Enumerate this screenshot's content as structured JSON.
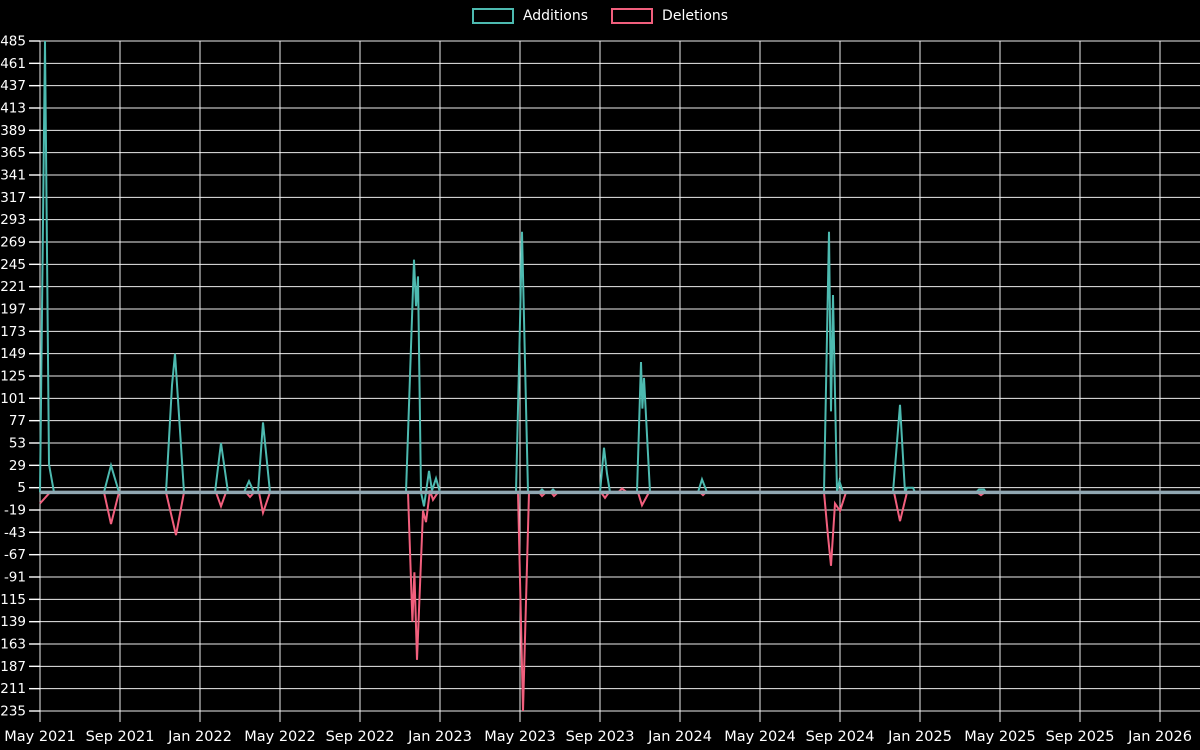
{
  "chart_data": {
    "type": "line",
    "title": "",
    "background_color": "#000000",
    "grid": true,
    "grid_color": "#ffffff",
    "text_color": "#ffffff",
    "zero_line_color": "#90a7b2",
    "legend": {
      "position": "top-center",
      "entries": [
        {
          "label": "Additions",
          "color": "#4dbab0"
        },
        {
          "label": "Deletions",
          "color": "#f15f7d"
        }
      ]
    },
    "y_axis": {
      "min": -235,
      "max": 485,
      "tick_step": 24,
      "ticks": [
        485,
        461,
        437,
        413,
        389,
        365,
        341,
        317,
        293,
        269,
        245,
        221,
        197,
        173,
        149,
        125,
        101,
        77,
        53,
        29,
        5,
        -19,
        -43,
        -67,
        -91,
        -115,
        -139,
        -163,
        -187,
        -211,
        -235
      ]
    },
    "x_axis": {
      "unit": "months since May 2021",
      "range_months": [
        0,
        58
      ],
      "tick_labels": [
        "May 2021",
        "Sep 2021",
        "Jan 2022",
        "May 2022",
        "Sep 2022",
        "Jan 2023",
        "May 2023",
        "Sep 2023",
        "Jan 2024",
        "May 2024",
        "Sep 2024",
        "Jan 2025",
        "May 2025",
        "Sep 2025",
        "Jan 2026"
      ],
      "tick_month_offsets": [
        0,
        4,
        8,
        12,
        16,
        20,
        24,
        28,
        32,
        36,
        40,
        44,
        48,
        52,
        56
      ]
    },
    "series": [
      {
        "name": "Additions",
        "color": "#4dbab0",
        "points": [
          [
            0,
            0
          ],
          [
            0.25,
            485
          ],
          [
            0.45,
            30
          ],
          [
            0.7,
            0
          ],
          [
            3.2,
            0
          ],
          [
            3.55,
            29
          ],
          [
            3.95,
            0
          ],
          [
            6.3,
            0
          ],
          [
            6.6,
            115
          ],
          [
            6.75,
            149
          ],
          [
            7.2,
            0
          ],
          [
            8.75,
            0
          ],
          [
            9.05,
            53
          ],
          [
            9.4,
            0
          ],
          [
            10.2,
            0
          ],
          [
            10.45,
            12
          ],
          [
            10.7,
            0
          ],
          [
            10.9,
            0
          ],
          [
            11.15,
            75
          ],
          [
            11.5,
            0
          ],
          [
            18.3,
            0
          ],
          [
            18.7,
            250
          ],
          [
            18.8,
            200
          ],
          [
            18.9,
            232
          ],
          [
            19.05,
            0
          ],
          [
            19.2,
            -15
          ],
          [
            19.45,
            23
          ],
          [
            19.6,
            2
          ],
          [
            19.8,
            15
          ],
          [
            20.0,
            0
          ],
          [
            23.8,
            0
          ],
          [
            23.95,
            135
          ],
          [
            24.1,
            280
          ],
          [
            24.4,
            0
          ],
          [
            24.95,
            0
          ],
          [
            25.1,
            3
          ],
          [
            25.25,
            0
          ],
          [
            25.5,
            0
          ],
          [
            25.65,
            3
          ],
          [
            25.8,
            0
          ],
          [
            28.0,
            0
          ],
          [
            28.2,
            48
          ],
          [
            28.35,
            20
          ],
          [
            28.5,
            0
          ],
          [
            29.85,
            0
          ],
          [
            30.05,
            140
          ],
          [
            30.12,
            90
          ],
          [
            30.2,
            123
          ],
          [
            30.5,
            0
          ],
          [
            32.9,
            0
          ],
          [
            33.1,
            14
          ],
          [
            33.35,
            0
          ],
          [
            39.2,
            0
          ],
          [
            39.45,
            280
          ],
          [
            39.55,
            87
          ],
          [
            39.65,
            212
          ],
          [
            39.85,
            0
          ],
          [
            39.97,
            12
          ],
          [
            40.15,
            0
          ],
          [
            42.65,
            0
          ],
          [
            43.0,
            94
          ],
          [
            43.25,
            0
          ],
          [
            43.35,
            5
          ],
          [
            43.65,
            5
          ],
          [
            43.75,
            0
          ],
          [
            46.8,
            0
          ],
          [
            46.95,
            3
          ],
          [
            47.2,
            3
          ],
          [
            47.3,
            0
          ],
          [
            57.9,
            0
          ]
        ]
      },
      {
        "name": "Deletions",
        "color": "#f15f7d",
        "points": [
          [
            0,
            -12
          ],
          [
            0.5,
            0
          ],
          [
            3.2,
            0
          ],
          [
            3.55,
            -34
          ],
          [
            3.95,
            0
          ],
          [
            6.3,
            0
          ],
          [
            6.8,
            -46
          ],
          [
            7.2,
            0
          ],
          [
            8.8,
            0
          ],
          [
            9.05,
            -15
          ],
          [
            9.3,
            0
          ],
          [
            10.3,
            0
          ],
          [
            10.5,
            -5
          ],
          [
            10.7,
            0
          ],
          [
            10.95,
            0
          ],
          [
            11.15,
            -22
          ],
          [
            11.5,
            0
          ],
          [
            18.4,
            0
          ],
          [
            18.62,
            -139
          ],
          [
            18.72,
            -86
          ],
          [
            18.85,
            -180
          ],
          [
            19.15,
            -20
          ],
          [
            19.3,
            -32
          ],
          [
            19.5,
            2
          ],
          [
            19.65,
            -8
          ],
          [
            19.9,
            0
          ],
          [
            23.9,
            0
          ],
          [
            24.15,
            -235
          ],
          [
            24.45,
            0
          ],
          [
            24.95,
            0
          ],
          [
            25.1,
            -4
          ],
          [
            25.3,
            0
          ],
          [
            25.55,
            0
          ],
          [
            25.7,
            -4
          ],
          [
            25.9,
            0
          ],
          [
            28.05,
            0
          ],
          [
            28.25,
            -6
          ],
          [
            28.45,
            0
          ],
          [
            28.9,
            0
          ],
          [
            29.1,
            4
          ],
          [
            29.35,
            0
          ],
          [
            29.9,
            0
          ],
          [
            30.1,
            -14
          ],
          [
            30.45,
            0
          ],
          [
            33.0,
            0
          ],
          [
            33.15,
            -3
          ],
          [
            33.3,
            0
          ],
          [
            39.2,
            0
          ],
          [
            39.4,
            -47
          ],
          [
            39.55,
            -79
          ],
          [
            39.75,
            -12
          ],
          [
            40.0,
            -20
          ],
          [
            40.3,
            0
          ],
          [
            42.7,
            0
          ],
          [
            43.0,
            -31
          ],
          [
            43.35,
            0
          ],
          [
            46.85,
            0
          ],
          [
            47.05,
            -3
          ],
          [
            47.25,
            0
          ],
          [
            57.9,
            0
          ]
        ]
      }
    ]
  }
}
